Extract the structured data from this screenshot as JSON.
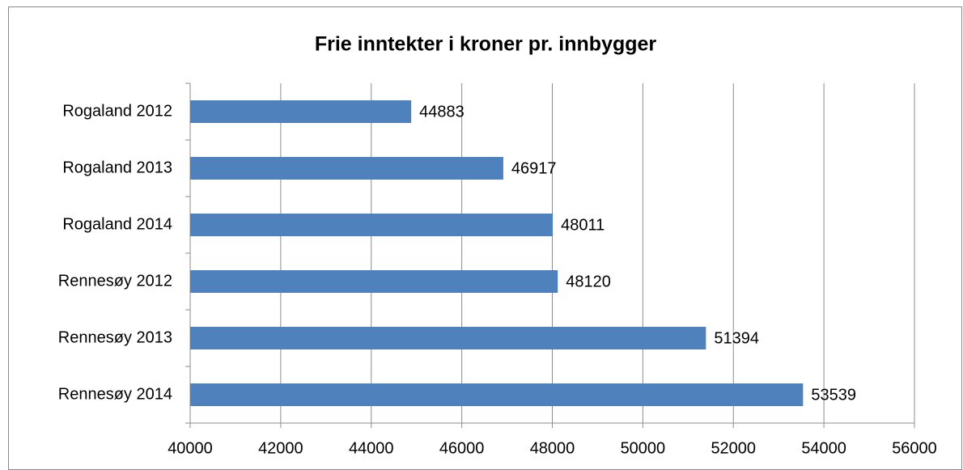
{
  "chart_data": {
    "type": "bar",
    "orientation": "horizontal",
    "title": "Frie inntekter i kroner pr. innbygger",
    "categories": [
      "Rogaland 2012",
      "Rogaland 2013",
      "Rogaland 2014",
      "Rennesøy 2012",
      "Rennesøy 2013",
      "Rennesøy 2014"
    ],
    "values": [
      44883,
      46917,
      48011,
      48120,
      51394,
      53539
    ],
    "color": "#4f81bd",
    "xlim": [
      40000,
      56000
    ],
    "xticks": [
      40000,
      42000,
      44000,
      46000,
      48000,
      50000,
      52000,
      54000,
      56000
    ],
    "grid": true
  }
}
